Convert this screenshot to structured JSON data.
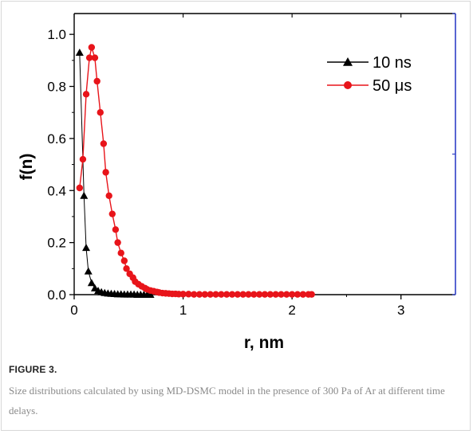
{
  "figure": {
    "label": "FIGURE 3.",
    "caption": "Size distributions calculated by using MD-DSMC model in the presence of 300 Pa of Ar at different time delays."
  },
  "chart_data": {
    "type": "line",
    "xlabel": "r, nm",
    "ylabel": "f(n)",
    "xlim": [
      0,
      3.5
    ],
    "ylim": [
      0,
      1.08
    ],
    "x_ticks": [
      0,
      1,
      2,
      3
    ],
    "y_ticks": [
      0.0,
      0.2,
      0.4,
      0.6,
      0.8,
      1.0
    ],
    "x_tick_labels": [
      "0",
      "1",
      "2",
      "3"
    ],
    "y_tick_labels": [
      "0.0",
      "0.2",
      "0.4",
      "0.6",
      "0.8",
      "1.0"
    ],
    "legend_position": "top-right",
    "grid": false,
    "series": [
      {
        "name": "10 ns",
        "marker": "triangle",
        "color": "#000000",
        "x": [
          0.05,
          0.09,
          0.11,
          0.13,
          0.16,
          0.19,
          0.22,
          0.25,
          0.28,
          0.31,
          0.34,
          0.37,
          0.4,
          0.43,
          0.46,
          0.49,
          0.52,
          0.55,
          0.58,
          0.61,
          0.64,
          0.67,
          0.7
        ],
        "y": [
          0.93,
          0.38,
          0.18,
          0.09,
          0.045,
          0.025,
          0.015,
          0.01,
          0.007,
          0.005,
          0.004,
          0.003,
          0.002,
          0.002,
          0.001,
          0.001,
          0.001,
          0.001,
          0.0,
          0.0,
          0.0,
          0.0,
          0.0
        ]
      },
      {
        "name": "50 μs",
        "marker": "circle",
        "color": "#e8141a",
        "x": [
          0.05,
          0.08,
          0.11,
          0.14,
          0.16,
          0.19,
          0.21,
          0.24,
          0.27,
          0.29,
          0.32,
          0.35,
          0.38,
          0.4,
          0.43,
          0.46,
          0.48,
          0.51,
          0.54,
          0.56,
          0.59,
          0.62,
          0.65,
          0.67,
          0.7,
          0.73,
          0.76,
          0.78,
          0.81,
          0.84,
          0.87,
          0.9,
          0.93,
          0.96,
          1.0,
          1.05,
          1.1,
          1.15,
          1.2,
          1.25,
          1.3,
          1.35,
          1.4,
          1.45,
          1.5,
          1.55,
          1.6,
          1.65,
          1.7,
          1.75,
          1.8,
          1.85,
          1.9,
          1.95,
          2.0,
          2.05,
          2.1,
          2.15,
          2.18
        ],
        "y": [
          0.41,
          0.52,
          0.77,
          0.91,
          0.95,
          0.91,
          0.82,
          0.7,
          0.58,
          0.47,
          0.38,
          0.31,
          0.25,
          0.2,
          0.16,
          0.13,
          0.1,
          0.08,
          0.065,
          0.05,
          0.04,
          0.032,
          0.025,
          0.02,
          0.016,
          0.013,
          0.01,
          0.008,
          0.006,
          0.005,
          0.004,
          0.003,
          0.003,
          0.002,
          0.002,
          0.002,
          0.001,
          0.001,
          0.001,
          0.001,
          0.001,
          0.001,
          0.001,
          0.001,
          0.001,
          0.001,
          0.001,
          0.001,
          0.001,
          0.001,
          0.001,
          0.001,
          0.001,
          0.001,
          0.001,
          0.001,
          0.001,
          0.001,
          0.001
        ]
      }
    ]
  }
}
